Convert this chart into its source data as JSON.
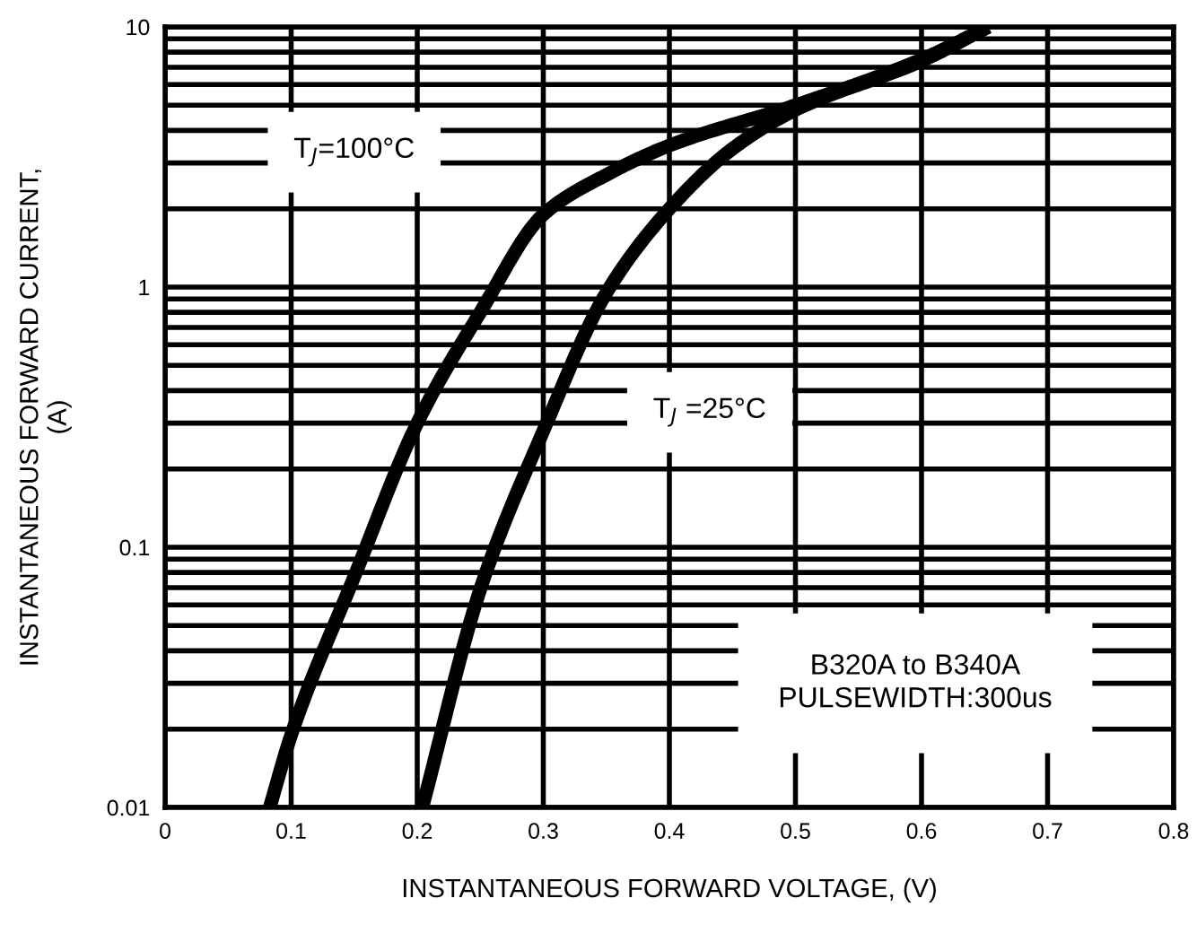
{
  "chart_data": {
    "type": "line",
    "xlabel": "INSTANTANEOUS FORWARD VOLTAGE, (V)",
    "ylabel": "INSTANTANEOUS FORWARD CURRENT,\n(A)",
    "log": "y",
    "grid": true,
    "marker": "none",
    "line_style": "solid",
    "legend": false,
    "xlim": [
      0,
      0.8
    ],
    "xticks": [
      0,
      0.1,
      0.2,
      0.3,
      0.4,
      0.5,
      0.6,
      0.7,
      0.8
    ],
    "ylim": [
      0.01,
      10
    ],
    "yticks": [
      0.01,
      {
        "value": 0.02,
        "label": null
      },
      {
        "value": 0.03,
        "label": null
      },
      {
        "value": 0.04,
        "label": null
      },
      {
        "value": 0.05,
        "label": null
      },
      {
        "value": 0.06,
        "label": null
      },
      {
        "value": 0.07,
        "label": null
      },
      {
        "value": 0.08,
        "label": null
      },
      {
        "value": 0.09,
        "label": null
      },
      0.1,
      {
        "value": 0.2,
        "label": null
      },
      {
        "value": 0.3,
        "label": null
      },
      {
        "value": 0.4,
        "label": null
      },
      {
        "value": 0.5,
        "label": null
      },
      {
        "value": 0.6,
        "label": null
      },
      {
        "value": 0.7,
        "label": null
      },
      {
        "value": 0.8,
        "label": null
      },
      {
        "value": 0.9,
        "label": null
      },
      1,
      {
        "value": 2,
        "label": null
      },
      {
        "value": 3,
        "label": null
      },
      {
        "value": 4,
        "label": null
      },
      {
        "value": 5,
        "label": null
      },
      {
        "value": 6,
        "label": null
      },
      {
        "value": 7,
        "label": null
      },
      {
        "value": 8,
        "label": null
      },
      {
        "value": 9,
        "label": null
      },
      10
    ],
    "series": [
      {
        "color": "#000000",
        "x": [
          0.083,
          0.1,
          0.15,
          0.2,
          0.25,
          0.3,
          0.35,
          0.4,
          0.5,
          0.6,
          0.653
        ],
        "values": [
          0.01,
          0.019,
          0.077,
          0.3,
          0.8,
          1.9,
          2.7,
          3.5,
          5.0,
          7.5,
          10
        ]
      },
      {
        "color": "#000000",
        "x": [
          0.204,
          0.25,
          0.3,
          0.35,
          0.4,
          0.45,
          0.5,
          0.6,
          0.653
        ],
        "values": [
          0.01,
          0.069,
          0.28,
          0.95,
          2.0,
          3.4,
          4.8,
          7.4,
          10
        ]
      }
    ],
    "annotations": [
      "T$_{J}$=100°C",
      "T$_{J}$ =25°C",
      "B320A to B340A\nPULSEWIDTH:300us"
    ]
  }
}
